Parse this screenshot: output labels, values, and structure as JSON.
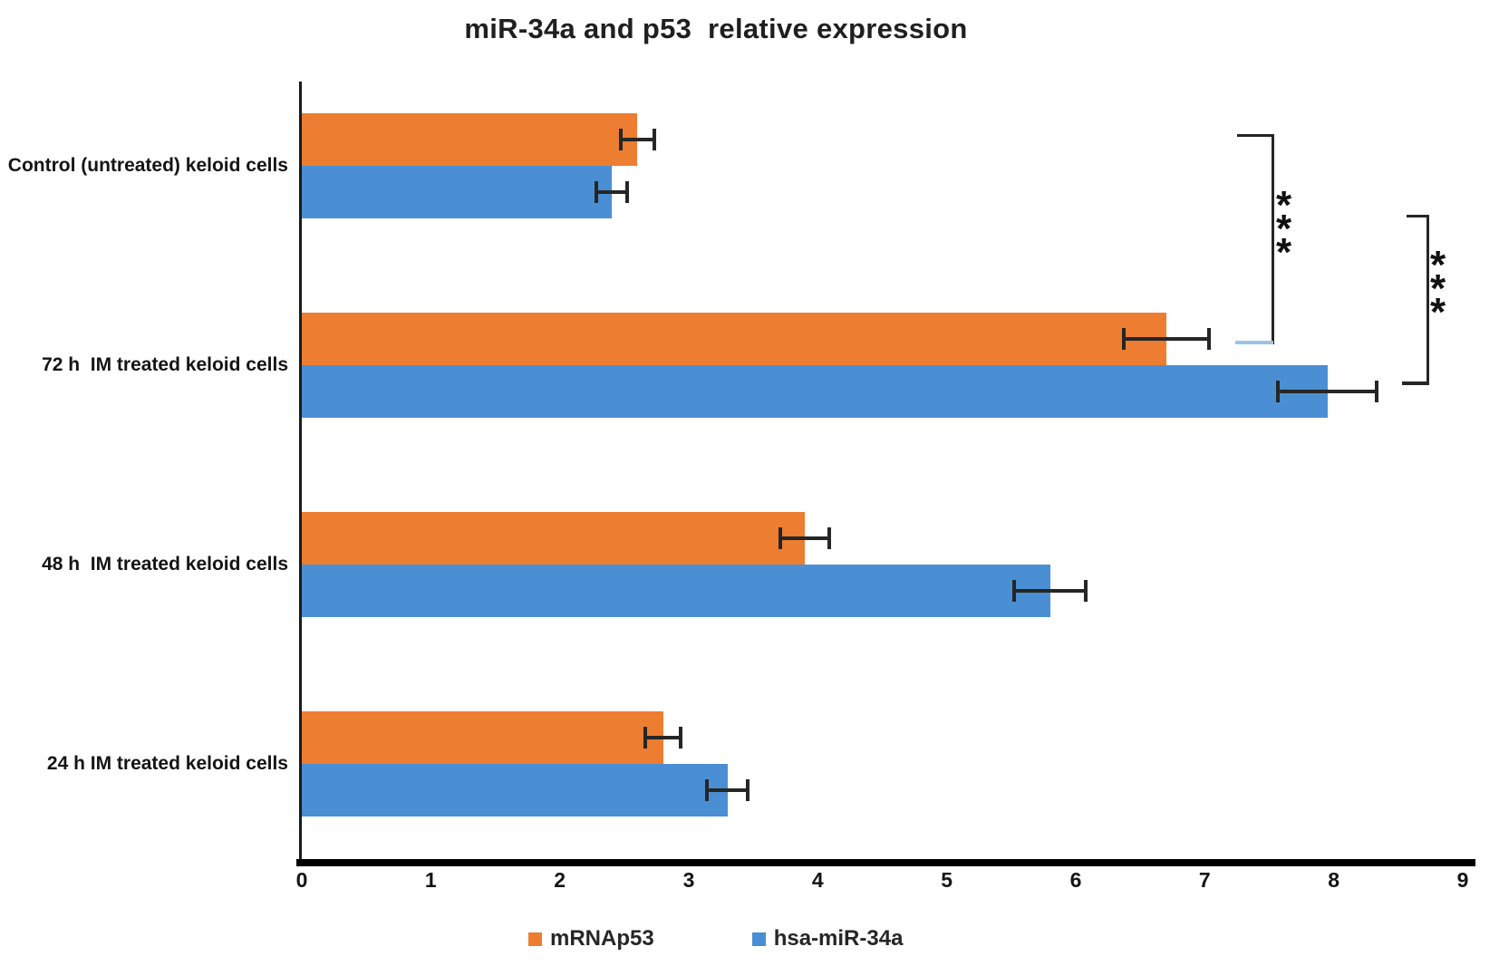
{
  "colors": {
    "p53_orange": "#ED7D31",
    "mir34a_blue": "#4A8FD4",
    "error_and_bracket": "#262626",
    "bracket_bottom_hook_light_blue": "#9DC3E6",
    "axis_black": "#000000"
  },
  "chart_data": {
    "type": "bar",
    "orientation": "horizontal",
    "title": "miR-34a and p53  relative expression",
    "categories": [
      "Control (untreated) keloid cells",
      "72 h  IM treated keloid cells",
      "48 h  IM treated keloid cells",
      "24 h IM treated keloid cells"
    ],
    "series": [
      {
        "name": "mRNAp53",
        "color": "#ED7D31",
        "values": [
          2.6,
          6.7,
          3.9,
          2.8
        ],
        "errors": [
          0.13,
          0.33,
          0.19,
          0.14
        ]
      },
      {
        "name": "hsa-miR-34a",
        "color": "#4A8FD4",
        "values": [
          2.4,
          7.95,
          5.8,
          3.3
        ],
        "errors": [
          0.12,
          0.38,
          0.28,
          0.16
        ]
      }
    ],
    "xlabel": "",
    "ylabel": "",
    "xlim": [
      0,
      9
    ],
    "xticks": [
      0,
      1,
      2,
      3,
      4,
      5,
      6,
      7,
      8,
      9
    ],
    "grid": false,
    "legend_position": "bottom",
    "error_bars": true,
    "significance": [
      {
        "label": "***",
        "series": "mRNAp53",
        "between": [
          "Control (untreated) keloid cells",
          "72 h  IM treated keloid cells"
        ]
      },
      {
        "label": "***",
        "series": "hsa-miR-34a",
        "between": [
          "Control (untreated) keloid cells",
          "72 h  IM treated keloid cells"
        ]
      }
    ]
  }
}
